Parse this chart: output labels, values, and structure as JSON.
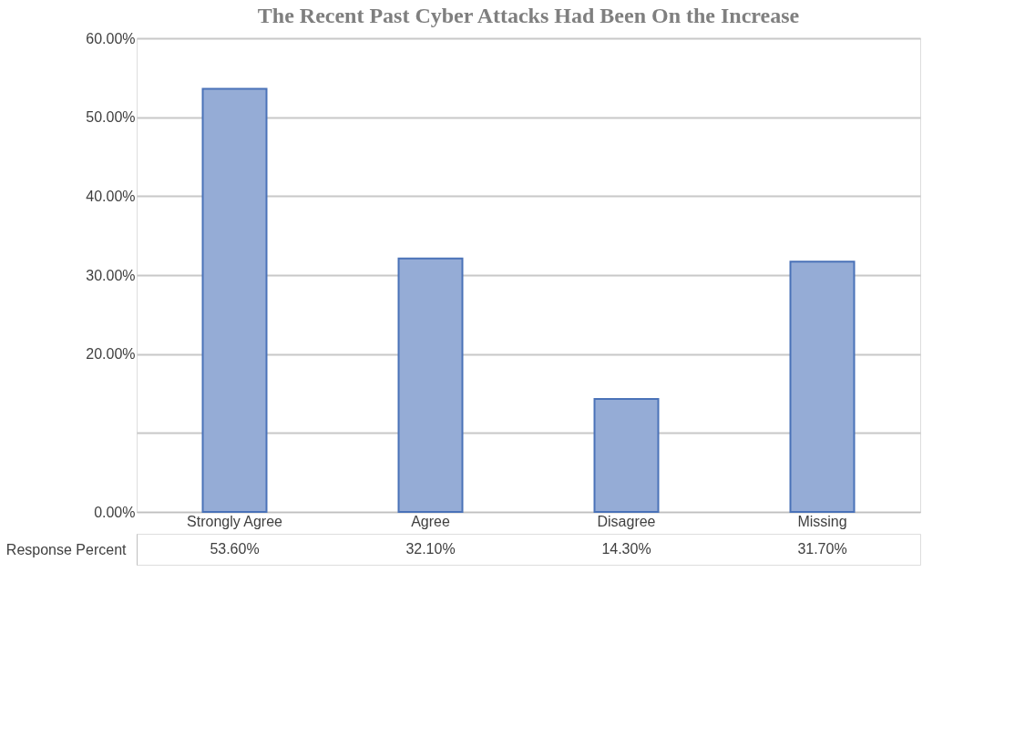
{
  "chart_data": {
    "type": "bar",
    "title": "The Recent Past Cyber Attacks Had Been On the Increase",
    "categories": [
      "Strongly Agree",
      "Agree",
      "Disagree",
      "Missing"
    ],
    "series": [
      {
        "name": "Response Percent",
        "color": "#95acd6",
        "values": [
          53.6,
          32.1,
          14.3,
          31.7
        ],
        "value_labels": [
          "53.60%",
          "32.10%",
          "14.30%",
          "31.70%"
        ]
      }
    ],
    "ylim": [
      0,
      60
    ],
    "yticks": [
      {
        "value": 0,
        "label": "0.00%"
      },
      {
        "value": 10,
        "label": null
      },
      {
        "value": 20,
        "label": "20.00%"
      },
      {
        "value": 30,
        "label": "30.00%"
      },
      {
        "value": 40,
        "label": "40.00%"
      },
      {
        "value": 50,
        "label": "50.00%"
      },
      {
        "value": 60,
        "label": "60.00%"
      }
    ],
    "grid": "y"
  }
}
